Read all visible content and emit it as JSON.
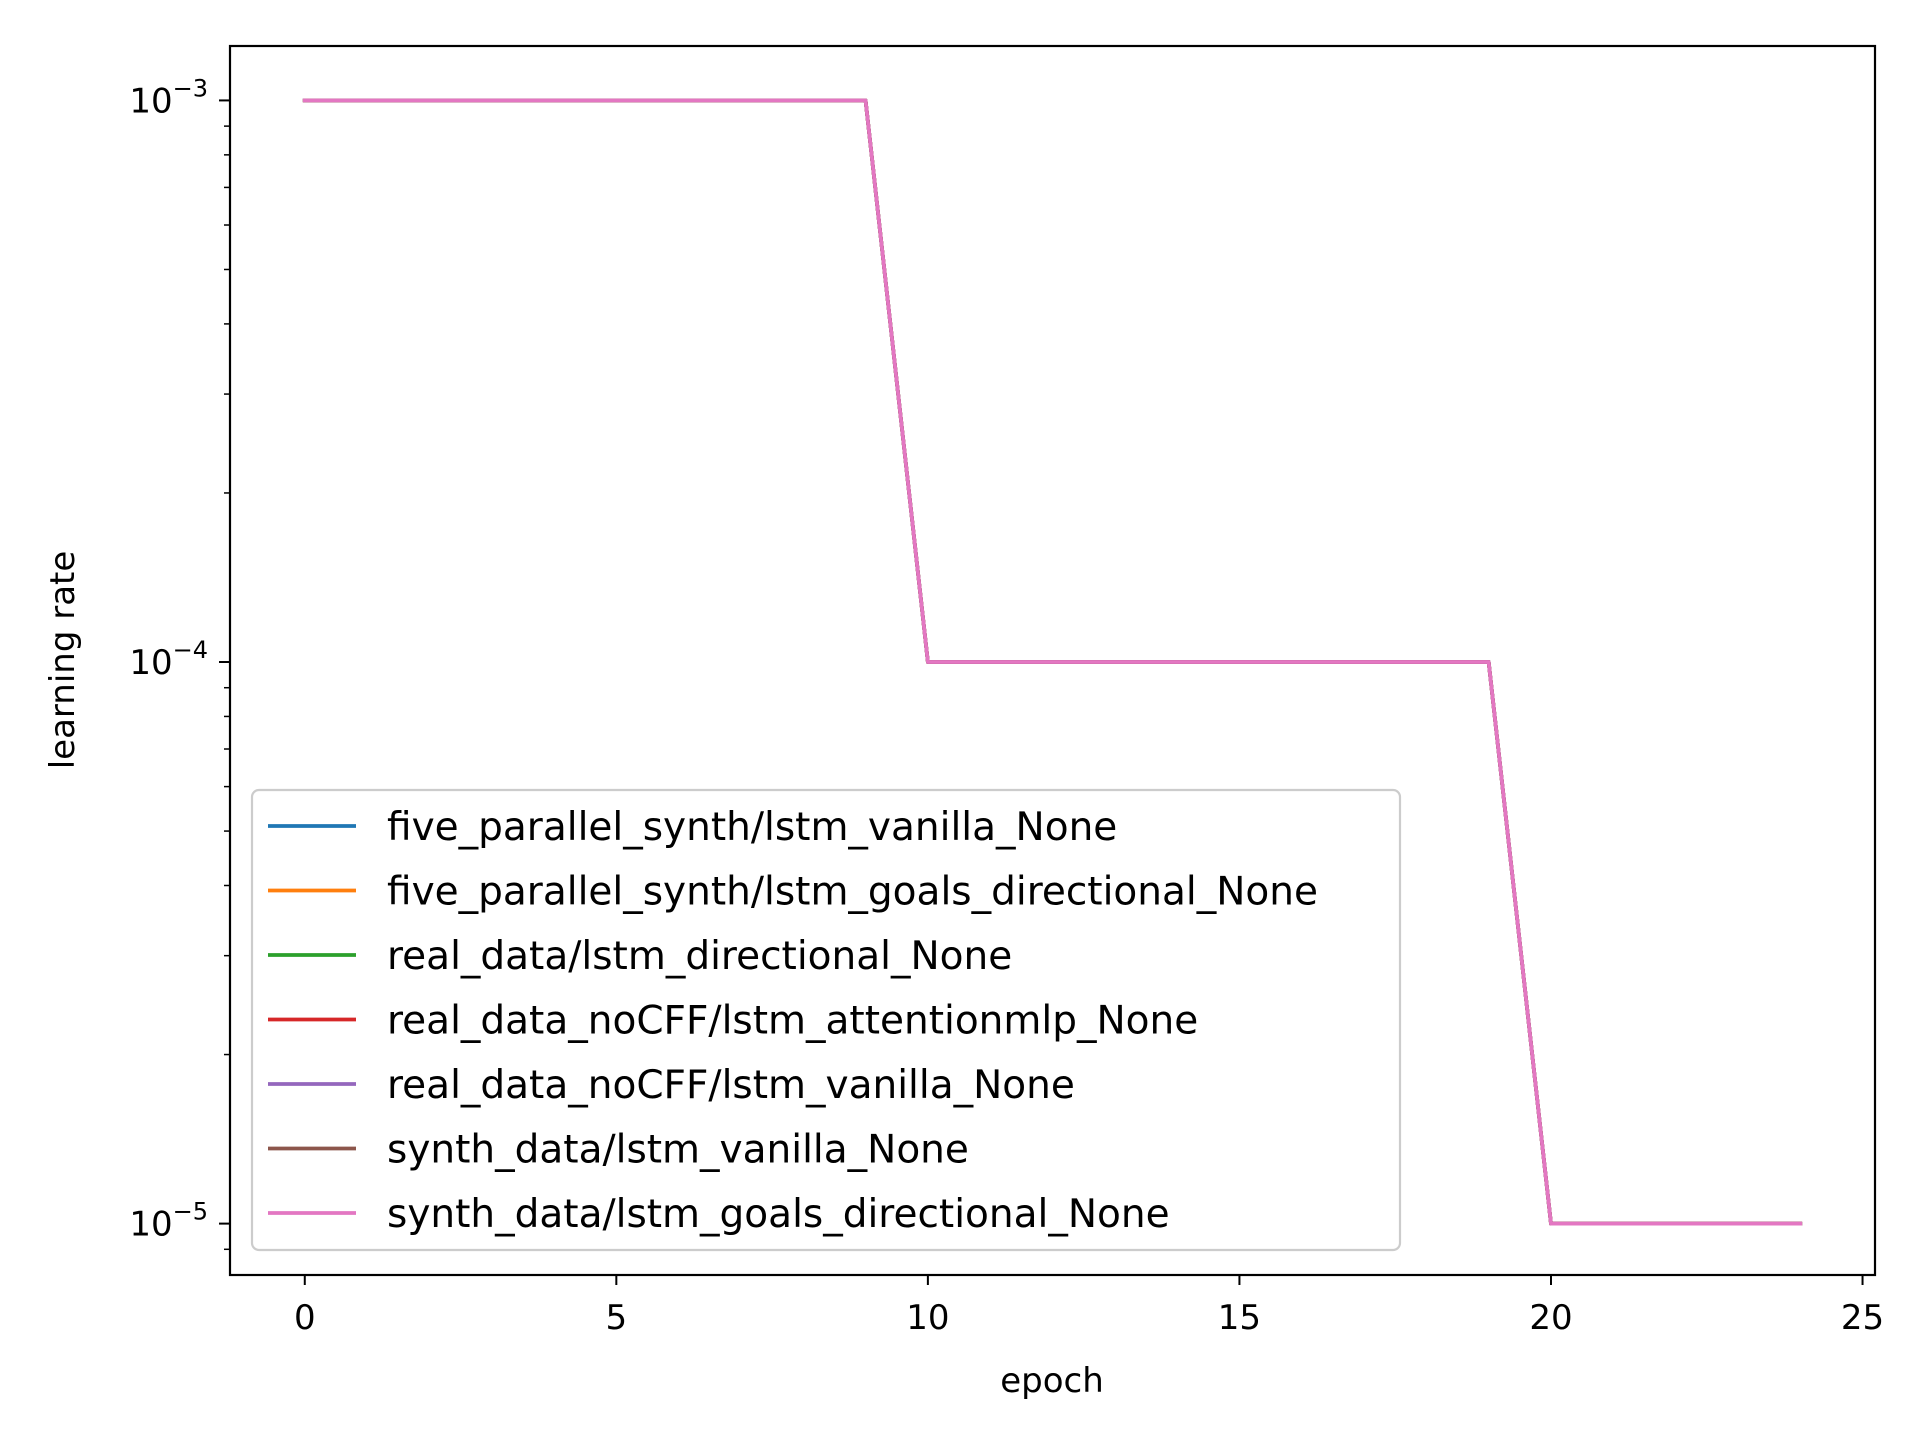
{
  "chart_data": {
    "type": "line",
    "xlabel": "epoch",
    "ylabel": "learning rate",
    "xlim": [
      -1.2,
      25.2
    ],
    "ylim": [
      8.1e-06,
      0.00125
    ],
    "yscale": "log",
    "x_ticks": [
      0,
      5,
      10,
      15,
      20,
      25
    ],
    "y_ticks": [
      {
        "value": 1e-05,
        "base": "10",
        "exp": "−5"
      },
      {
        "value": 0.0001,
        "base": "10",
        "exp": "−4"
      },
      {
        "value": 0.001,
        "base": "10",
        "exp": "−3"
      }
    ],
    "legend_position": "lower-left",
    "grid": false,
    "x": [
      0,
      1,
      2,
      3,
      4,
      5,
      6,
      7,
      8,
      9,
      10,
      11,
      12,
      13,
      14,
      15,
      16,
      17,
      18,
      19,
      20,
      21,
      22,
      23,
      24
    ],
    "series": [
      {
        "name": "five_parallel_synth/lstm_vanilla_None",
        "color": "#1f77b4",
        "values": [
          0.001,
          0.001,
          0.001,
          0.001,
          0.001,
          0.001,
          0.001,
          0.001,
          0.001,
          0.001,
          0.0001,
          0.0001,
          0.0001,
          0.0001,
          0.0001,
          0.0001,
          0.0001,
          0.0001,
          0.0001,
          0.0001,
          1e-05,
          1e-05,
          1e-05,
          1e-05,
          1e-05
        ]
      },
      {
        "name": "five_parallel_synth/lstm_goals_directional_None",
        "color": "#ff7f0e",
        "values": [
          0.001,
          0.001,
          0.001,
          0.001,
          0.001,
          0.001,
          0.001,
          0.001,
          0.001,
          0.001,
          0.0001,
          0.0001,
          0.0001,
          0.0001,
          0.0001,
          0.0001,
          0.0001,
          0.0001,
          0.0001,
          0.0001,
          1e-05,
          1e-05,
          1e-05,
          1e-05,
          1e-05
        ]
      },
      {
        "name": "real_data/lstm_directional_None",
        "color": "#2ca02c",
        "values": [
          0.001,
          0.001,
          0.001,
          0.001,
          0.001,
          0.001,
          0.001,
          0.001,
          0.001,
          0.001,
          0.0001,
          0.0001,
          0.0001,
          0.0001,
          0.0001,
          0.0001,
          0.0001,
          0.0001,
          0.0001,
          0.0001,
          1e-05,
          1e-05,
          1e-05,
          1e-05,
          1e-05
        ]
      },
      {
        "name": "real_data_noCFF/lstm_attentionmlp_None",
        "color": "#d62728",
        "values": [
          0.001,
          0.001,
          0.001,
          0.001,
          0.001,
          0.001,
          0.001,
          0.001,
          0.001,
          0.001,
          0.0001,
          0.0001,
          0.0001,
          0.0001,
          0.0001,
          0.0001,
          0.0001,
          0.0001,
          0.0001,
          0.0001,
          1e-05,
          1e-05,
          1e-05,
          1e-05,
          1e-05
        ]
      },
      {
        "name": "real_data_noCFF/lstm_vanilla_None",
        "color": "#9467bd",
        "values": [
          0.001,
          0.001,
          0.001,
          0.001,
          0.001,
          0.001,
          0.001,
          0.001,
          0.001,
          0.001,
          0.0001,
          0.0001,
          0.0001,
          0.0001,
          0.0001,
          0.0001,
          0.0001,
          0.0001,
          0.0001,
          0.0001,
          1e-05,
          1e-05,
          1e-05,
          1e-05,
          1e-05
        ]
      },
      {
        "name": "synth_data/lstm_vanilla_None",
        "color": "#8c564b",
        "values": [
          0.001,
          0.001,
          0.001,
          0.001,
          0.001,
          0.001,
          0.001,
          0.001,
          0.001,
          0.001,
          0.0001,
          0.0001,
          0.0001,
          0.0001,
          0.0001,
          0.0001,
          0.0001,
          0.0001,
          0.0001,
          0.0001,
          1e-05,
          1e-05,
          1e-05,
          1e-05,
          1e-05
        ]
      },
      {
        "name": "synth_data/lstm_goals_directional_None",
        "color": "#e377c2",
        "values": [
          0.001,
          0.001,
          0.001,
          0.001,
          0.001,
          0.001,
          0.001,
          0.001,
          0.001,
          0.001,
          0.0001,
          0.0001,
          0.0001,
          0.0001,
          0.0001,
          0.0001,
          0.0001,
          0.0001,
          0.0001,
          0.0001,
          1e-05,
          1e-05,
          1e-05,
          1e-05,
          1e-05
        ]
      }
    ]
  }
}
